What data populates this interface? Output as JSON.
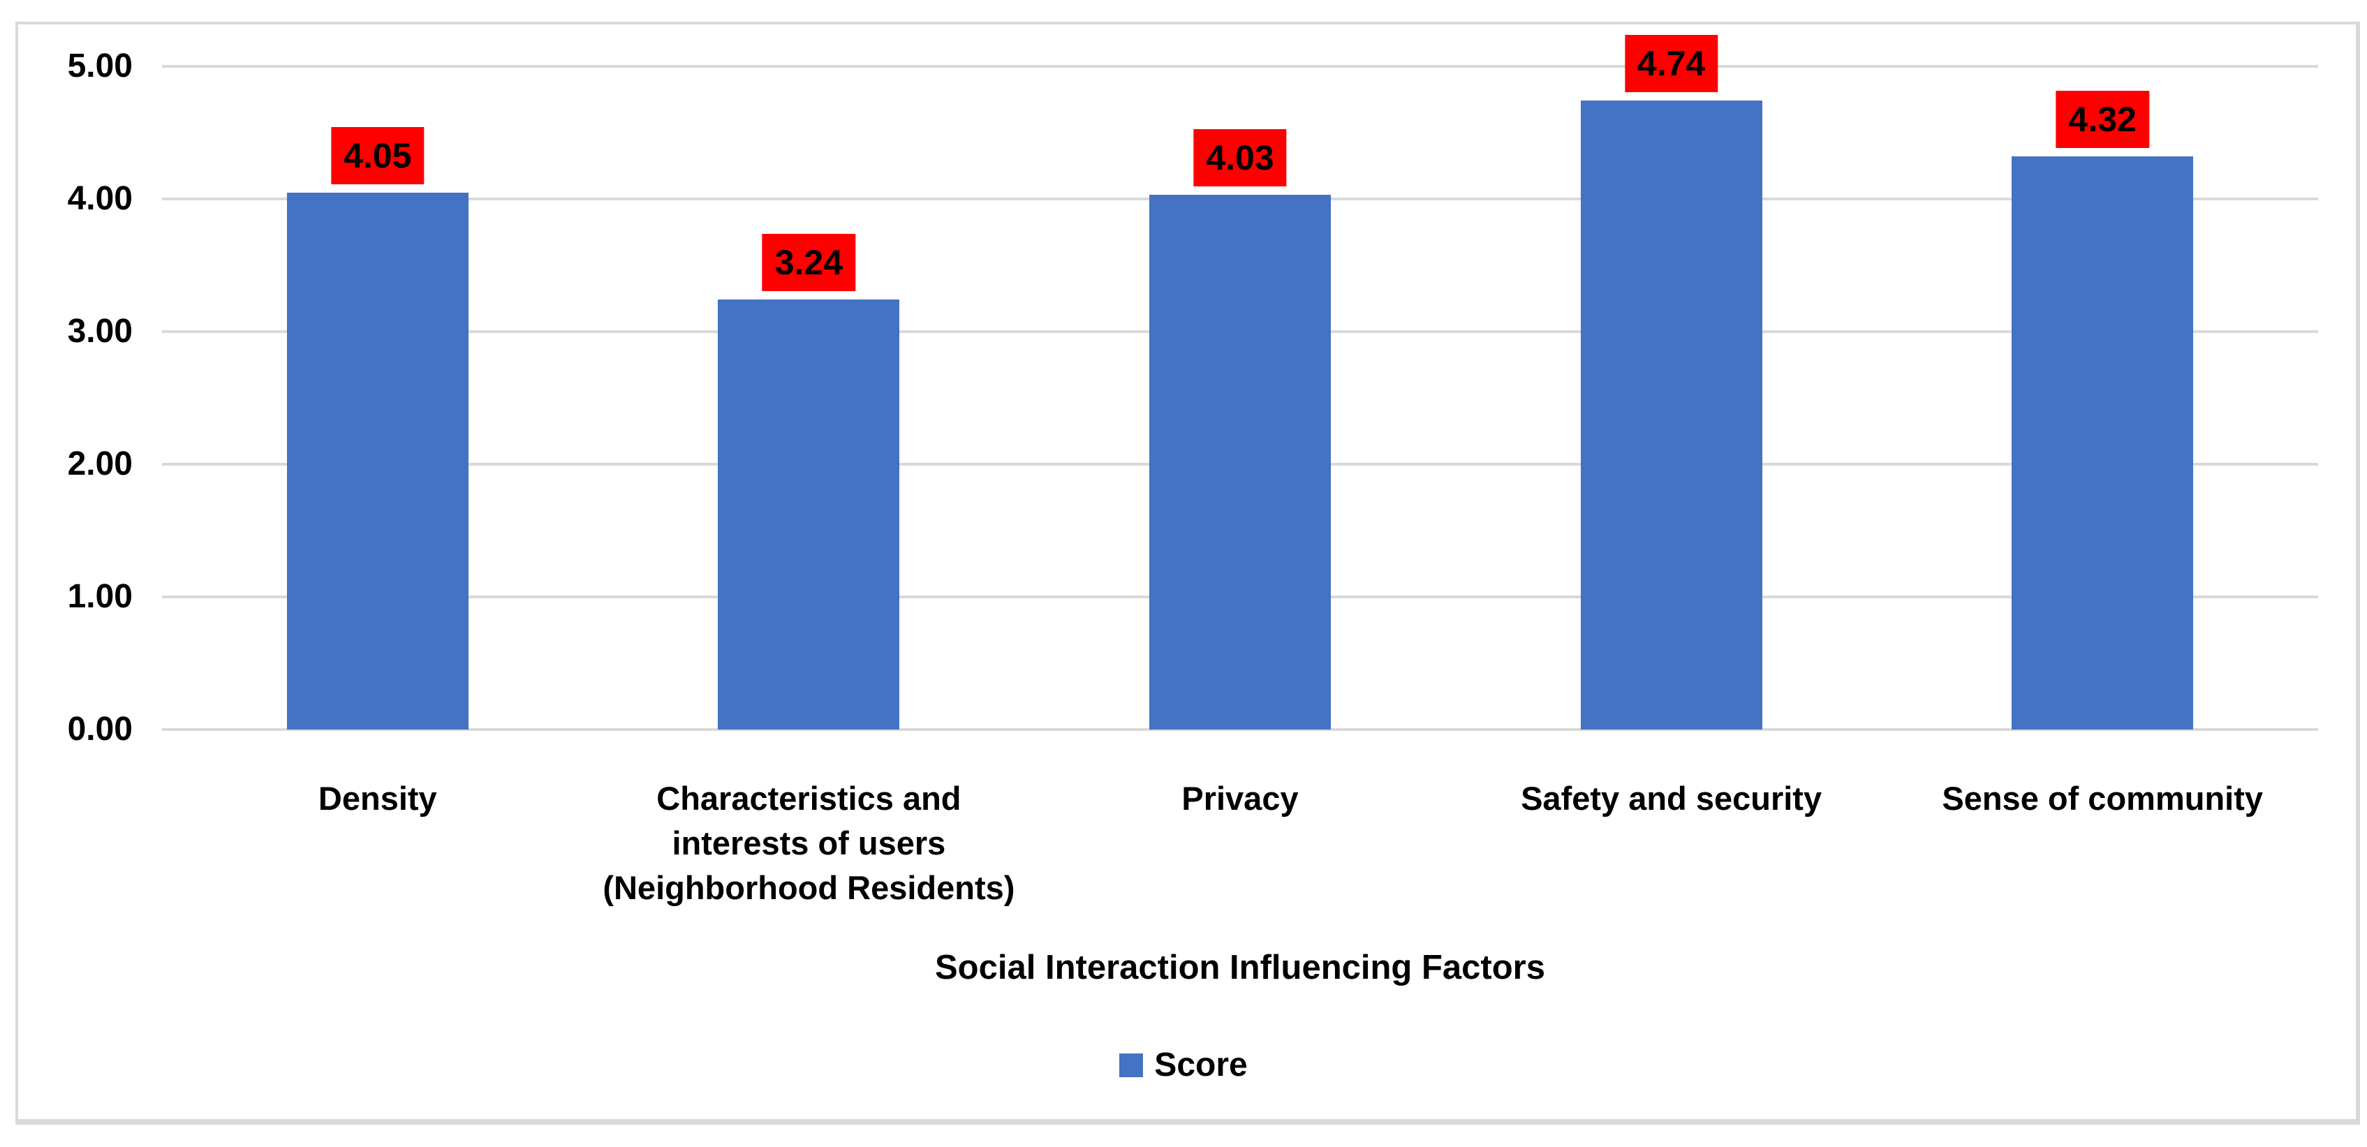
{
  "chart_data": {
    "type": "bar",
    "title": "",
    "categories": [
      "Density",
      "Characteristics and interests of users (Neighborhood Residents)",
      "Privacy",
      "Safety and security",
      "Sense of community"
    ],
    "category_display_lines": [
      [
        "Density"
      ],
      [
        "Characteristics and",
        "interests of users",
        "(Neighborhood Residents)"
      ],
      [
        "Privacy"
      ],
      [
        "Safety and security"
      ],
      [
        "Sense of community"
      ]
    ],
    "series": [
      {
        "name": "Score",
        "values": [
          4.05,
          3.24,
          4.03,
          4.74,
          4.32
        ]
      }
    ],
    "data_labels": [
      "4.05",
      "3.24",
      "4.03",
      "4.74",
      "4.32"
    ],
    "xlabel": "Social Interaction Influencing Factors",
    "ylabel": "",
    "ylim": [
      0,
      5
    ],
    "yticks": [
      0,
      1,
      2,
      3,
      4,
      5
    ],
    "ytick_labels": [
      "0.00",
      "1.00",
      "2.00",
      "3.00",
      "4.00",
      "5.00"
    ],
    "grid": true,
    "legend": {
      "position": "bottom",
      "entries": [
        {
          "label": "Score",
          "color": "#4472C4"
        }
      ]
    },
    "colors": {
      "bar": "#4472C4",
      "data_label_background": "#FF0000",
      "data_label_text": "#000000",
      "gridline": "#D9D9D9",
      "chart_border": "#D9D9D9",
      "axis_text": "#000000",
      "background": "#FFFFFF"
    }
  }
}
